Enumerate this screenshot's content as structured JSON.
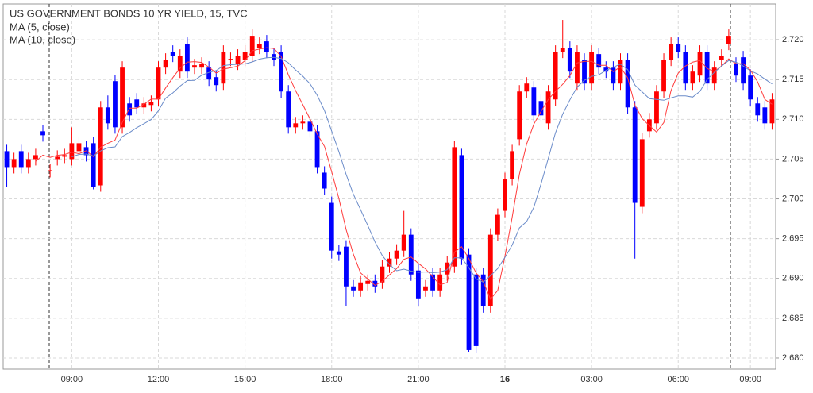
{
  "chart_data": {
    "type": "candlestick",
    "title": "US GOVERNMENT BONDS 10 YR YIELD, 15, TVC",
    "up_color": "#ff0000",
    "down_color": "#0000ff",
    "grid": true,
    "moving_averages": [
      {
        "name": "MA (5, close)",
        "color": "#ff3b3b"
      },
      {
        "name": "MA (10, close)",
        "color": "#6a8bc9"
      }
    ],
    "categories": [
      null,
      null,
      null,
      null,
      null,
      null,
      null,
      null,
      null,
      "09:00",
      null,
      null,
      null,
      null,
      null,
      null,
      null,
      null,
      null,
      null,
      null,
      "12:00",
      null,
      null,
      null,
      null,
      null,
      null,
      null,
      null,
      null,
      null,
      null,
      "15:00",
      null,
      null,
      null,
      null,
      null,
      null,
      null,
      null,
      null,
      null,
      null,
      "18:00",
      null,
      null,
      null,
      null,
      null,
      null,
      null,
      null,
      null,
      null,
      null,
      "21:00",
      null,
      null,
      null,
      null,
      null,
      null,
      null,
      null,
      null,
      null,
      null,
      "16",
      null,
      null,
      null,
      null,
      null,
      null,
      null,
      null,
      null,
      null,
      null,
      "03:00",
      null,
      null,
      null,
      null,
      null,
      null,
      null,
      null,
      null,
      null,
      null,
      "06:00",
      null,
      null,
      null,
      null,
      null,
      null,
      null,
      null,
      null,
      "09:00",
      null,
      null,
      null
    ],
    "open": [
      2.706,
      2.704,
      2.706,
      2.704,
      2.705,
      2.7085,
      2.7035,
      2.705,
      2.7053,
      2.705,
      2.706,
      2.7065,
      2.707,
      2.7017,
      2.7115,
      2.7148,
      2.709,
      2.712,
      2.7125,
      2.7115,
      2.7118,
      2.7125,
      2.7165,
      2.7185,
      2.716,
      2.7195,
      2.7165,
      2.7165,
      2.7165,
      2.7153,
      2.7145,
      2.7175,
      2.717,
      2.7175,
      2.718,
      2.719,
      2.7198,
      2.7182,
      2.7185,
      2.7135,
      2.709,
      2.7095,
      2.7097,
      2.7085,
      2.7033,
      2.6995,
      2.6934,
      2.694,
      2.689,
      2.6885,
      2.6893,
      2.6897,
      2.6895,
      2.6915,
      2.6925,
      2.6935,
      2.6955,
      2.691,
      2.6885,
      2.6905,
      2.6885,
      2.6905,
      2.6915,
      2.7055,
      2.693,
      2.6905,
      2.6905,
      2.6865,
      2.6955,
      2.6985,
      2.7025,
      2.7075,
      2.7135,
      2.714,
      2.7123,
      2.7095,
      2.7125,
      2.7185,
      2.719,
      2.7145,
      2.7175,
      2.7145,
      2.7182,
      2.7165,
      2.7165,
      2.7145,
      2.7175,
      2.7115,
      2.699,
      2.7085,
      2.7095,
      2.7135,
      2.7175,
      2.7195,
      2.7185,
      2.7145,
      2.7155,
      2.7185,
      2.7145,
      2.7175,
      2.7195,
      2.717,
      2.7178,
      2.7155,
      2.712,
      2.7115,
      2.7095
    ],
    "high": [
      2.7068,
      2.7058,
      2.7068,
      2.7058,
      2.7063,
      2.7093,
      2.7044,
      2.7061,
      2.7063,
      2.709,
      2.7078,
      2.7073,
      2.7078,
      2.7123,
      2.713,
      2.7156,
      2.7173,
      2.7128,
      2.7133,
      2.7128,
      2.713,
      2.7173,
      2.7183,
      2.7193,
      2.7188,
      2.7203,
      2.7176,
      2.7178,
      2.7173,
      2.7161,
      2.7193,
      2.7184,
      2.7188,
      2.7193,
      2.7213,
      2.7203,
      2.7206,
      2.719,
      2.7193,
      2.7143,
      2.7103,
      2.7105,
      2.7105,
      2.7093,
      2.7041,
      2.7003,
      2.6942,
      2.6948,
      2.6898,
      2.6903,
      2.6905,
      2.6905,
      2.6923,
      2.6933,
      2.6943,
      2.6985,
      2.6963,
      2.6918,
      2.6898,
      2.6913,
      2.6913,
      2.6928,
      2.7073,
      2.7063,
      2.6938,
      2.6913,
      2.6913,
      2.6963,
      2.6988,
      2.7033,
      2.7068,
      2.7143,
      2.7153,
      2.7148,
      2.7131,
      2.7143,
      2.7193,
      2.7225,
      2.7198,
      2.7193,
      2.7183,
      2.7193,
      2.719,
      2.7173,
      2.7173,
      2.7183,
      2.7183,
      2.7123,
      2.7083,
      2.7108,
      2.7143,
      2.7183,
      2.7203,
      2.7203,
      2.7193,
      2.7168,
      2.7193,
      2.7193,
      2.7173,
      2.7188,
      2.7213,
      2.7178,
      2.7186,
      2.7163,
      2.7128,
      2.7123,
      2.7133
    ],
    "low": [
      2.7015,
      2.7032,
      2.7032,
      2.7032,
      2.7042,
      2.7072,
      2.7027,
      2.7042,
      2.7045,
      2.7042,
      2.7052,
      2.7047,
      2.7012,
      2.7009,
      2.7087,
      2.7082,
      2.7082,
      2.7097,
      2.7107,
      2.7107,
      2.711,
      2.7117,
      2.7157,
      2.7172,
      2.7152,
      2.7152,
      2.7157,
      2.7157,
      2.7142,
      2.7135,
      2.7137,
      2.7167,
      2.7162,
      2.7167,
      2.7172,
      2.7182,
      2.7177,
      2.7167,
      2.7127,
      2.7082,
      2.7082,
      2.7087,
      2.7077,
      2.7032,
      2.7005,
      2.6925,
      2.6922,
      2.6865,
      2.6877,
      2.6877,
      2.6885,
      2.6882,
      2.6887,
      2.6907,
      2.6917,
      2.6927,
      2.6897,
      2.6865,
      2.6877,
      2.6877,
      2.6877,
      2.6897,
      2.6907,
      2.6917,
      2.6808,
      2.6807,
      2.6857,
      2.6857,
      2.6947,
      2.6977,
      2.7017,
      2.7067,
      2.7127,
      2.7097,
      2.7097,
      2.7087,
      2.7117,
      2.7177,
      2.7152,
      2.7137,
      2.7137,
      2.7137,
      2.7157,
      2.7152,
      2.7137,
      2.7137,
      2.7107,
      2.6925,
      2.6982,
      2.7077,
      2.7087,
      2.7127,
      2.7167,
      2.7177,
      2.7137,
      2.7137,
      2.7147,
      2.7137,
      2.7137,
      2.7167,
      2.7187,
      2.7147,
      2.7137,
      2.7117,
      2.7097,
      2.7087,
      2.7087
    ],
    "close": [
      2.704,
      2.705,
      2.704,
      2.705,
      2.7055,
      2.708,
      2.7036,
      2.7053,
      2.7055,
      2.707,
      2.707,
      2.7055,
      2.7015,
      2.7115,
      2.7095,
      2.709,
      2.7165,
      2.7105,
      2.7115,
      2.712,
      2.7122,
      2.7165,
      2.7175,
      2.718,
      2.718,
      2.716,
      2.7168,
      2.717,
      2.715,
      2.7143,
      2.7185,
      2.7176,
      2.718,
      2.7185,
      2.7205,
      2.7195,
      2.7185,
      2.7175,
      2.7135,
      2.709,
      2.7095,
      2.7097,
      2.7085,
      2.704,
      2.7013,
      2.6935,
      2.693,
      2.689,
      2.6885,
      2.6895,
      2.6897,
      2.689,
      2.6915,
      2.6925,
      2.6935,
      2.6955,
      2.6905,
      2.6875,
      2.689,
      2.6885,
      2.6905,
      2.692,
      2.7065,
      2.6925,
      2.681,
      2.6815,
      2.6865,
      2.6955,
      2.698,
      2.7025,
      2.706,
      2.7135,
      2.7145,
      2.7105,
      2.7105,
      2.7135,
      2.7185,
      2.719,
      2.716,
      2.7185,
      2.7145,
      2.7185,
      2.7165,
      2.716,
      2.7145,
      2.7175,
      2.7115,
      2.6995,
      2.7075,
      2.71,
      2.7135,
      2.7175,
      2.7195,
      2.7185,
      2.7145,
      2.716,
      2.7185,
      2.7145,
      2.7165,
      2.718,
      2.7205,
      2.7155,
      2.7145,
      2.7125,
      2.7105,
      2.7095,
      2.7125
    ],
    "ylim": [
      2.6786,
      2.7245
    ],
    "yticks": [
      {
        "value": 2.68,
        "label": "2.680"
      },
      {
        "value": 2.685,
        "label": "2.685"
      },
      {
        "value": 2.69,
        "label": "2.690"
      },
      {
        "value": 2.695,
        "label": "2.695"
      },
      {
        "value": 2.7,
        "label": "2.700"
      },
      {
        "value": 2.705,
        "label": "2.705"
      },
      {
        "value": 2.71,
        "label": "2.710"
      },
      {
        "value": 2.715,
        "label": "2.715"
      },
      {
        "value": 2.72,
        "label": "2.720"
      }
    ]
  }
}
